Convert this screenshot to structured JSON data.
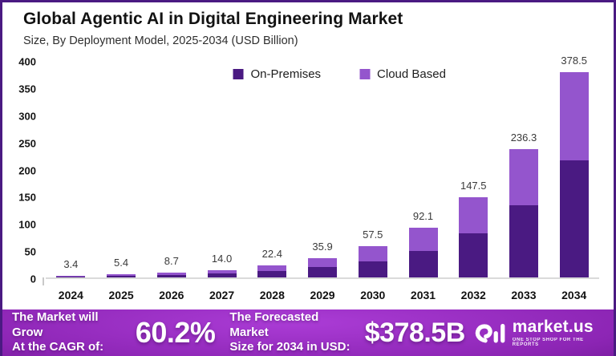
{
  "header": {
    "title": "Global Agentic AI in Digital Engineering Market",
    "subtitle": "Size, By Deployment Model, 2025-2034 (USD Billion)"
  },
  "chart_data": {
    "type": "bar",
    "stacked": true,
    "title": "Global Agentic AI in Digital Engineering Market",
    "units": "USD Billion",
    "categories": [
      "2024",
      "2025",
      "2026",
      "2027",
      "2028",
      "2029",
      "2030",
      "2031",
      "2032",
      "2033",
      "2034"
    ],
    "series": [
      {
        "name": "On-Premises",
        "color": "#4a1a82",
        "values": [
          1.8,
          2.9,
          4.7,
          7.6,
          12.2,
          19.0,
          29.9,
          49.0,
          81.1,
          133.5,
          216.0
        ]
      },
      {
        "name": "Cloud Based",
        "color": "#9455cd",
        "values": [
          1.6,
          2.5,
          4.0,
          6.4,
          10.2,
          16.9,
          27.6,
          43.1,
          66.4,
          102.8,
          162.5
        ]
      }
    ],
    "split_estimated_from_pixels": true,
    "totals": [
      3.4,
      5.4,
      8.7,
      14.0,
      22.4,
      35.9,
      57.5,
      92.1,
      147.5,
      236.3,
      378.5
    ],
    "total_labels": [
      "3.4",
      "5.4",
      "8.7",
      "14.0",
      "22.4",
      "35.9",
      "57.5",
      "92.1",
      "147.5",
      "236.3",
      "378.5"
    ],
    "ylim": [
      0,
      400
    ],
    "ytick_step": 50,
    "grid": false,
    "legend_position": "top-center-inside"
  },
  "colors": {
    "on_premises": "#4a1a82",
    "cloud_based": "#9455cd",
    "frame_border": "#4a1a82",
    "banner_purple": "#8c25b4"
  },
  "footer": {
    "cagr_label_line1": "The Market will Grow",
    "cagr_label_line2": "At the CAGR of:",
    "cagr_value": "60.2%",
    "forecast_label_line1": "The Forecasted Market",
    "forecast_label_line2": "Size for 2034 in USD:",
    "forecast_value": "$378.5B",
    "brand": "market.us",
    "brand_tagline": "ONE STOP SHOP FOR THE REPORTS"
  }
}
